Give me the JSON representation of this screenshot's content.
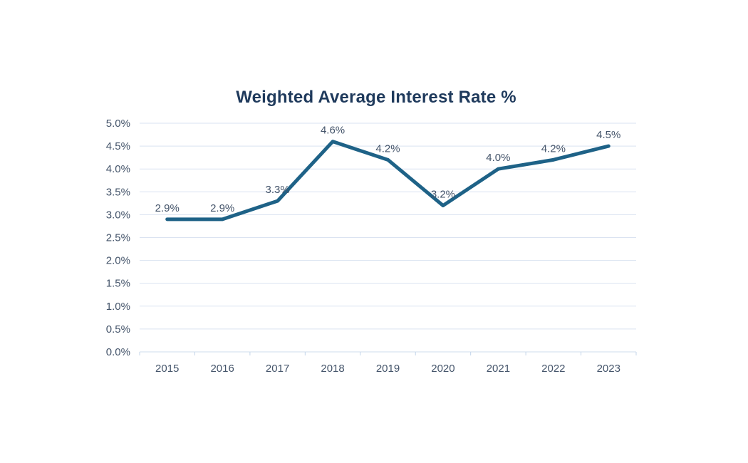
{
  "chart_data": {
    "type": "line",
    "title": "Weighted Average Interest Rate %",
    "categories": [
      "2015",
      "2016",
      "2017",
      "2018",
      "2019",
      "2020",
      "2021",
      "2022",
      "2023"
    ],
    "series": [
      {
        "name": "Weighted Average Interest Rate %",
        "values": [
          2.9,
          2.9,
          3.3,
          4.6,
          4.2,
          3.2,
          4.0,
          4.2,
          4.5
        ]
      }
    ],
    "data_labels": [
      "2.9%",
      "2.9%",
      "3.3%",
      "4.6%",
      "4.2%",
      "3.2%",
      "4.0%",
      "4.2%",
      "4.5%"
    ],
    "xlabel": "",
    "ylabel": "",
    "ylim": [
      0,
      5
    ],
    "y_step": 0.5,
    "y_ticks": [
      "0.0%",
      "0.5%",
      "1.0%",
      "1.5%",
      "2.0%",
      "2.5%",
      "3.0%",
      "3.5%",
      "4.0%",
      "4.5%",
      "5.0%"
    ],
    "grid": true,
    "legend": "none",
    "colors": {
      "line": "#1e6287",
      "gridline": "#dae3f1",
      "axis_line": "#cfdcec",
      "tick_mark": "#c3d5ea",
      "label": "#44546a",
      "title": "#1f3a5c",
      "background": "#ffffff"
    }
  }
}
